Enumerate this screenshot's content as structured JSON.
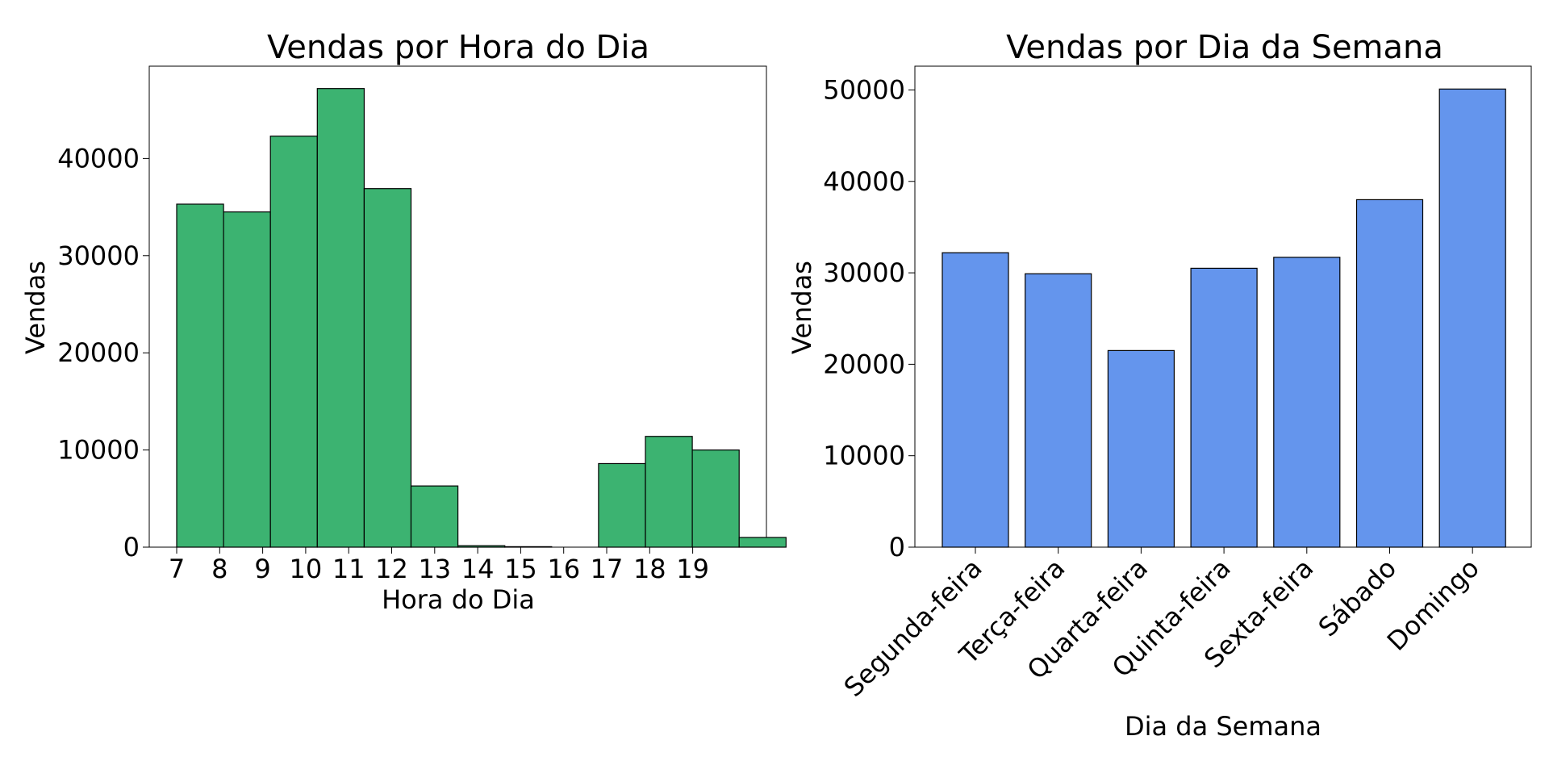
{
  "chart_data": [
    {
      "type": "bar",
      "title": "Vendas por Hora do Dia",
      "xlabel": "Hora do Dia",
      "ylabel": "Vendas",
      "categories": [
        "7",
        "8",
        "9",
        "10",
        "11",
        "12",
        "13",
        "14",
        "15",
        "16",
        "17",
        "18",
        "19"
      ],
      "values": [
        35300,
        34500,
        42300,
        47200,
        36900,
        6300,
        150,
        50,
        0,
        8600,
        11400,
        10000,
        1000
      ],
      "yticks": [
        "0",
        "10000",
        "20000",
        "30000",
        "40000"
      ],
      "ylim": [
        0,
        49500
      ],
      "grid": false,
      "color": "#3CB371",
      "edgecolor": "#000000"
    },
    {
      "type": "bar",
      "title": "Vendas por Dia da Semana",
      "xlabel": "Dia da Semana",
      "ylabel": "Vendas",
      "categories": [
        "Segunda-feira",
        "Terça-feira",
        "Quarta-feira",
        "Quinta-feira",
        "Sexta-feira",
        "Sábado",
        "Domingo"
      ],
      "values": [
        32200,
        29900,
        21500,
        30500,
        31700,
        38000,
        50100
      ],
      "yticks": [
        "0",
        "10000",
        "20000",
        "30000",
        "40000",
        "50000"
      ],
      "ylim": [
        0,
        52600
      ],
      "grid": false,
      "color": "#6495ED",
      "edgecolor": "#000000"
    }
  ]
}
